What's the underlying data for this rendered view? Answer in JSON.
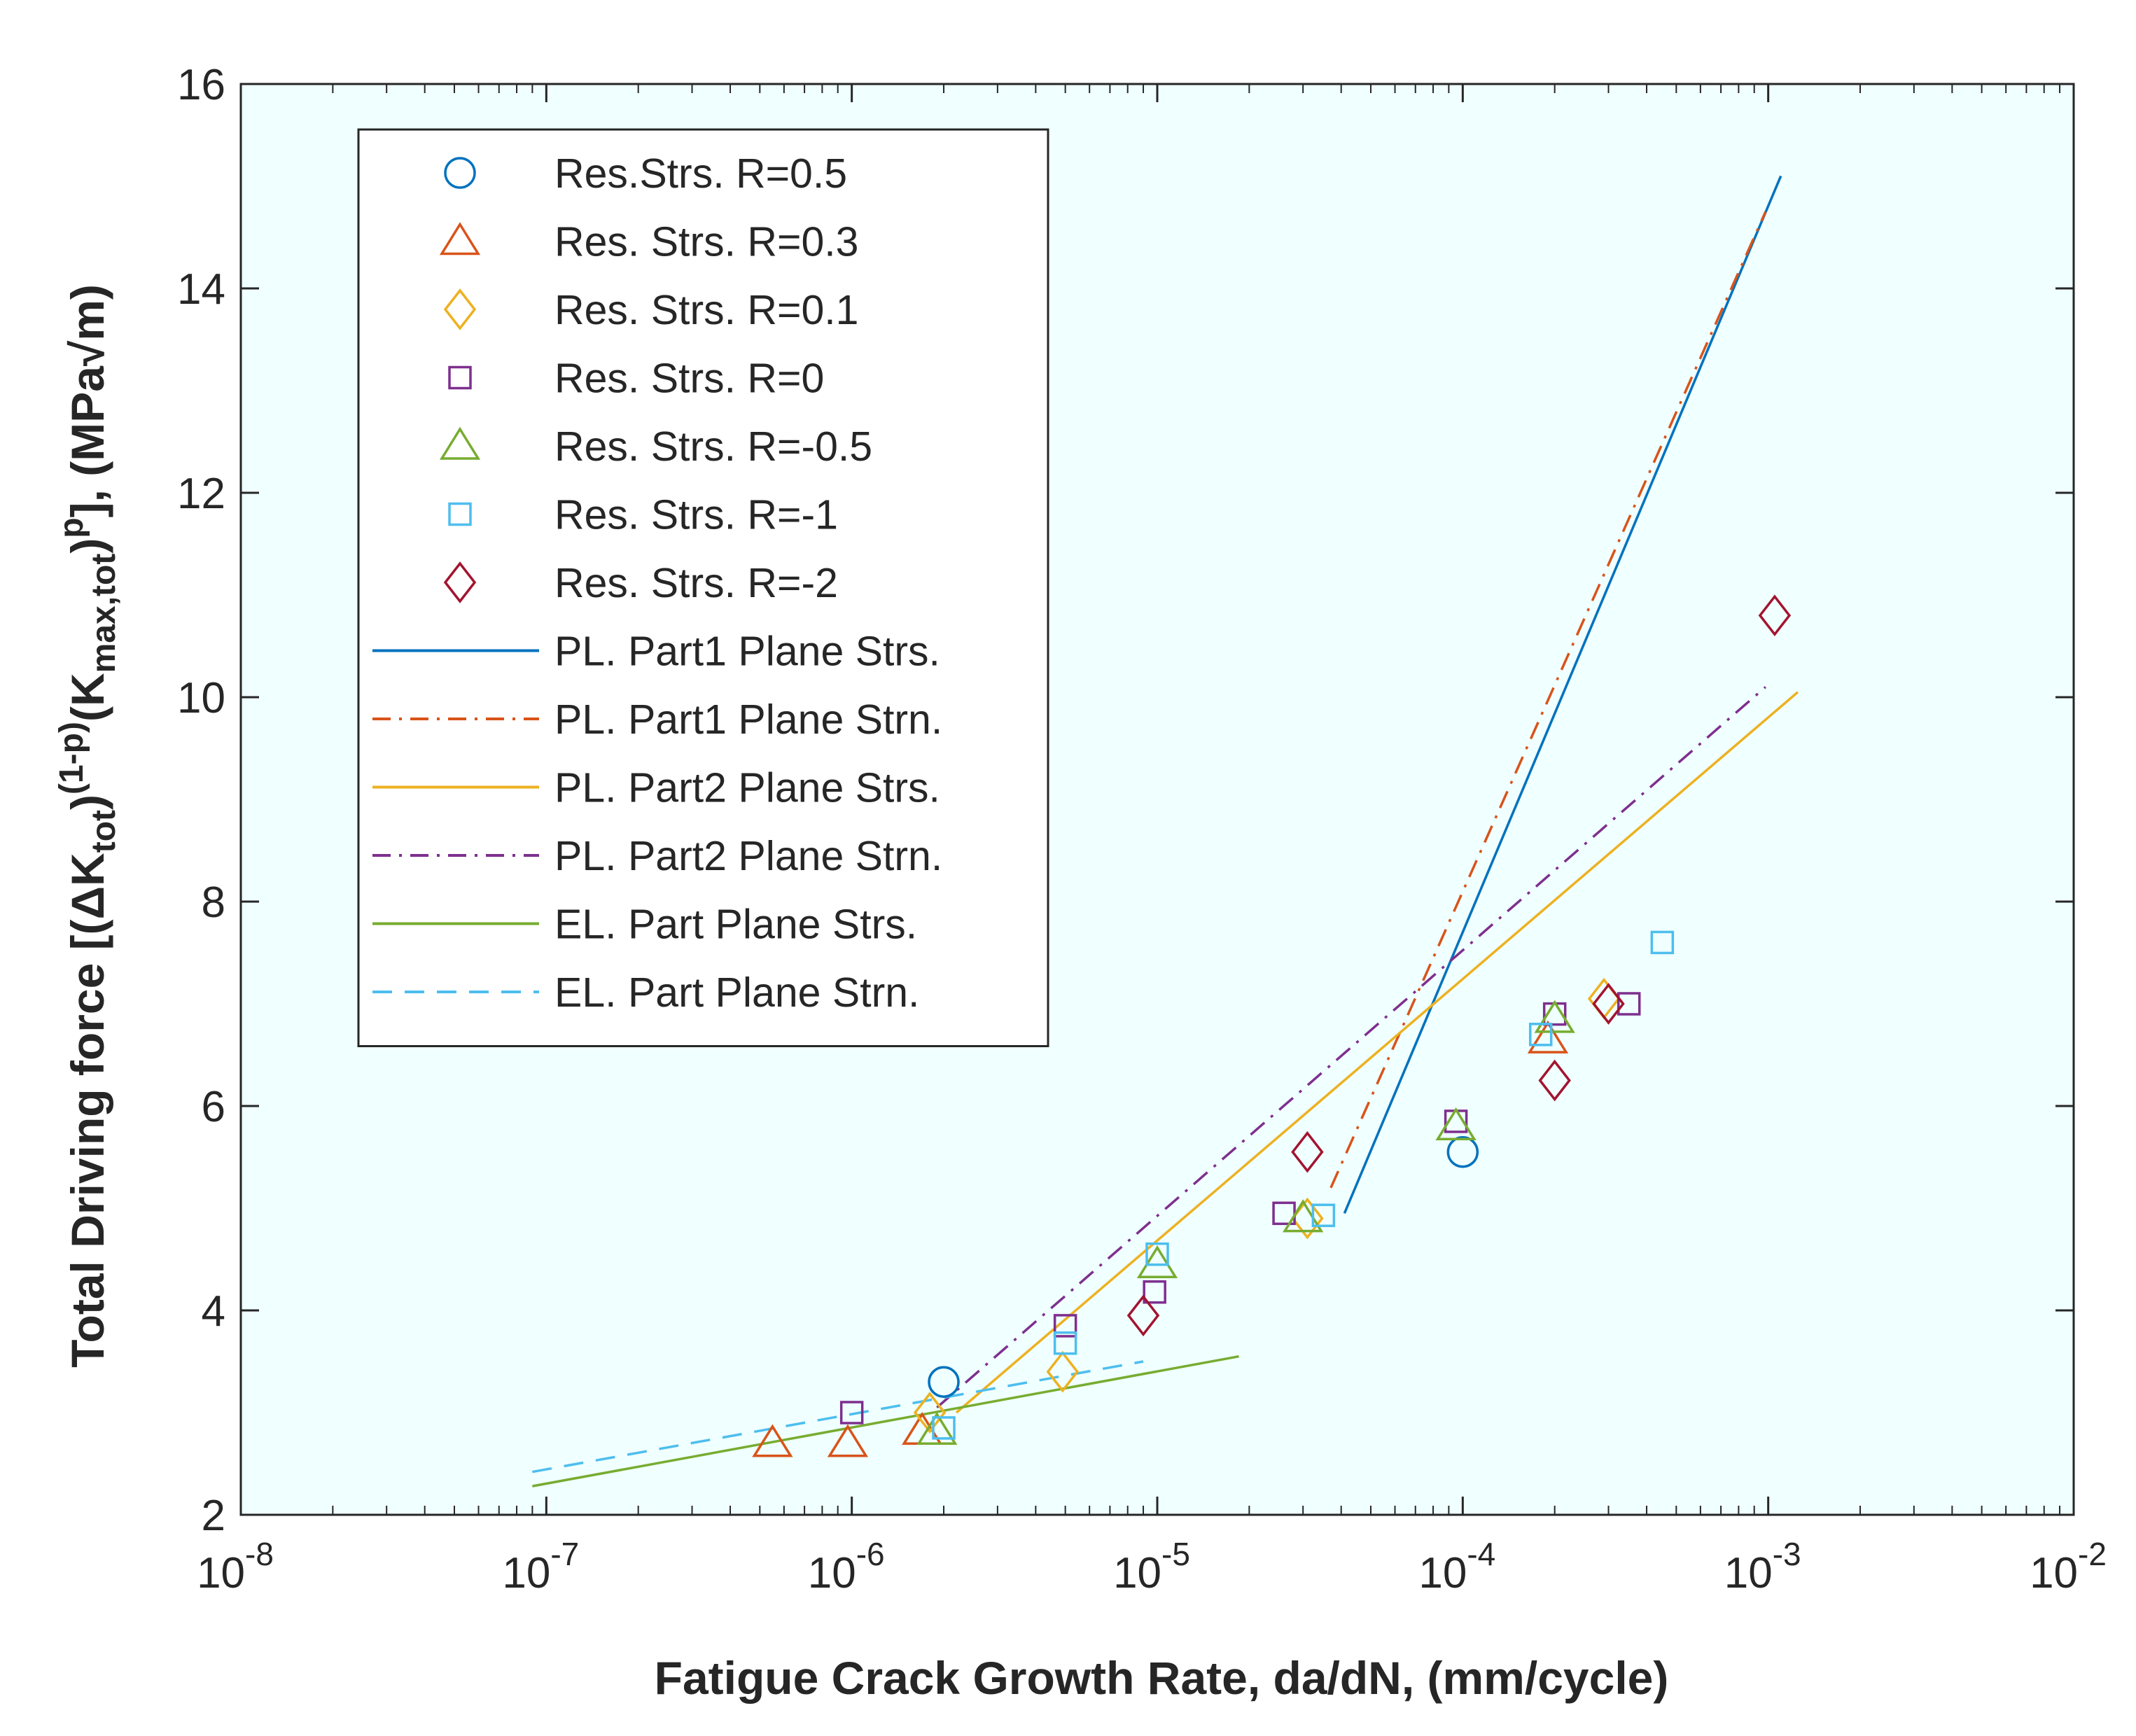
{
  "chart_data": {
    "type": "scatter",
    "title": "",
    "xlabel": "Fatigue Crack Growth Rate, da/dN, (mm/cycle)",
    "ylabel": {
      "part1": "Total Driving force [(",
      "delta": "Δ",
      "k1": "K",
      "k1_sub": "tot",
      "close1": ")",
      "exp1": "(1-p)",
      "open2": "(K",
      "k2_sub": "max,tot",
      "close2": ")",
      "exp2": "p",
      "tail": "], (MPa√m)"
    },
    "xscale": "log",
    "xlim_exp": [
      -8,
      -2
    ],
    "x_ticks": [
      {
        "base": "10",
        "exp": "-8",
        "value": -8
      },
      {
        "base": "10",
        "exp": "-7",
        "value": -7
      },
      {
        "base": "10",
        "exp": "-6",
        "value": -6
      },
      {
        "base": "10",
        "exp": "-5",
        "value": -5
      },
      {
        "base": "10",
        "exp": "-4",
        "value": -4
      },
      {
        "base": "10",
        "exp": "-3",
        "value": -3
      },
      {
        "base": "10",
        "exp": "-2",
        "value": -2
      }
    ],
    "ylim": [
      2,
      16
    ],
    "y_ticks": [
      {
        "label": "2",
        "value": 2
      },
      {
        "label": "4",
        "value": 4
      },
      {
        "label": "6",
        "value": 6
      },
      {
        "label": "8",
        "value": 8
      },
      {
        "label": "10",
        "value": 10
      },
      {
        "label": "12",
        "value": 12
      },
      {
        "label": "14",
        "value": 14
      },
      {
        "label": "16",
        "value": 16
      }
    ],
    "plot_background": "#f0ffff",
    "legend_position": "top-left",
    "series": [
      {
        "name": "Res.Strs. R=0.5",
        "kind": "marker",
        "marker": "circle",
        "color": "#0072bd",
        "points": [
          [
            2e-06,
            3.3
          ],
          [
            0.0001,
            5.55
          ]
        ]
      },
      {
        "name": "Res. Strs. R=0.3",
        "kind": "marker",
        "marker": "triangle",
        "color": "#d95319",
        "points": [
          [
            5.5e-07,
            2.7
          ],
          [
            9.7e-07,
            2.7
          ],
          [
            1.7e-06,
            2.82
          ],
          [
            0.00019,
            6.65
          ]
        ]
      },
      {
        "name": "Res. Strs. R=0.1",
        "kind": "marker",
        "marker": "diamond",
        "color": "#edb120",
        "points": [
          [
            1.8e-06,
            3.0
          ],
          [
            4.9e-06,
            3.4
          ],
          [
            3.1e-05,
            4.9
          ],
          [
            0.00029,
            7.05
          ]
        ]
      },
      {
        "name": "Res. Strs. R=0",
        "kind": "marker",
        "marker": "square",
        "color": "#7e2f8e",
        "points": [
          [
            1e-06,
            3.0
          ],
          [
            5e-06,
            3.85
          ],
          [
            9.8e-06,
            4.18
          ],
          [
            2.6e-05,
            4.95
          ],
          [
            9.5e-05,
            5.85
          ],
          [
            0.0002,
            6.9
          ],
          [
            0.00035,
            7.0
          ]
        ]
      },
      {
        "name": "Res. Strs. R=-0.5",
        "kind": "marker",
        "marker": "triangle",
        "color": "#77ac30",
        "points": [
          [
            1.9e-06,
            2.82
          ],
          [
            1e-05,
            4.45
          ],
          [
            3e-05,
            4.9
          ],
          [
            9.5e-05,
            5.8
          ],
          [
            0.0002,
            6.85
          ]
        ]
      },
      {
        "name": "Res. Strs. R=-1",
        "kind": "marker",
        "marker": "square",
        "color": "#4dbeee",
        "points": [
          [
            2e-06,
            2.85
          ],
          [
            5e-06,
            3.68
          ],
          [
            1e-05,
            4.55
          ],
          [
            3.5e-05,
            4.93
          ],
          [
            0.00018,
            6.7
          ],
          [
            0.00045,
            7.6
          ]
        ]
      },
      {
        "name": "Res. Strs. R=-2",
        "kind": "marker",
        "marker": "diamond",
        "color": "#a2142f",
        "points": [
          [
            9e-06,
            3.95
          ],
          [
            3.1e-05,
            5.55
          ],
          [
            0.0002,
            6.25
          ],
          [
            0.0003,
            7.0
          ],
          [
            0.00105,
            10.8
          ]
        ]
      },
      {
        "name": "PL. Part1 Plane Strs.",
        "kind": "line",
        "dash": "solid",
        "color": "#0072bd",
        "points": [
          [
            4.1e-05,
            4.95
          ],
          [
            0.0011,
            15.1
          ]
        ]
      },
      {
        "name": "PL. Part1 Plane Strn.",
        "kind": "line",
        "dash": "dashdot",
        "color": "#d95319",
        "points": [
          [
            3.7e-05,
            5.2
          ],
          [
            0.00098,
            14.75
          ]
        ]
      },
      {
        "name": "PL. Part2 Plane Strs.",
        "kind": "line",
        "dash": "solid",
        "color": "#edb120",
        "points": [
          [
            2.2e-06,
            3.0
          ],
          [
            0.00125,
            10.05
          ]
        ]
      },
      {
        "name": "PL. Part2 Plane Strn.",
        "kind": "line",
        "dash": "dashdot",
        "color": "#7e2f8e",
        "points": [
          [
            1.9e-06,
            3.05
          ],
          [
            0.00098,
            10.1
          ]
        ]
      },
      {
        "name": "EL. Part Plane Strs.",
        "kind": "line",
        "dash": "solid",
        "color": "#77ac30",
        "points": [
          [
            9e-08,
            2.28
          ],
          [
            1.85e-05,
            3.55
          ]
        ]
      },
      {
        "name": "EL. Part Plane Strn.",
        "kind": "line",
        "dash": "dashed",
        "color": "#4dbeee",
        "points": [
          [
            9e-08,
            2.42
          ],
          [
            9e-06,
            3.5
          ]
        ]
      }
    ]
  }
}
